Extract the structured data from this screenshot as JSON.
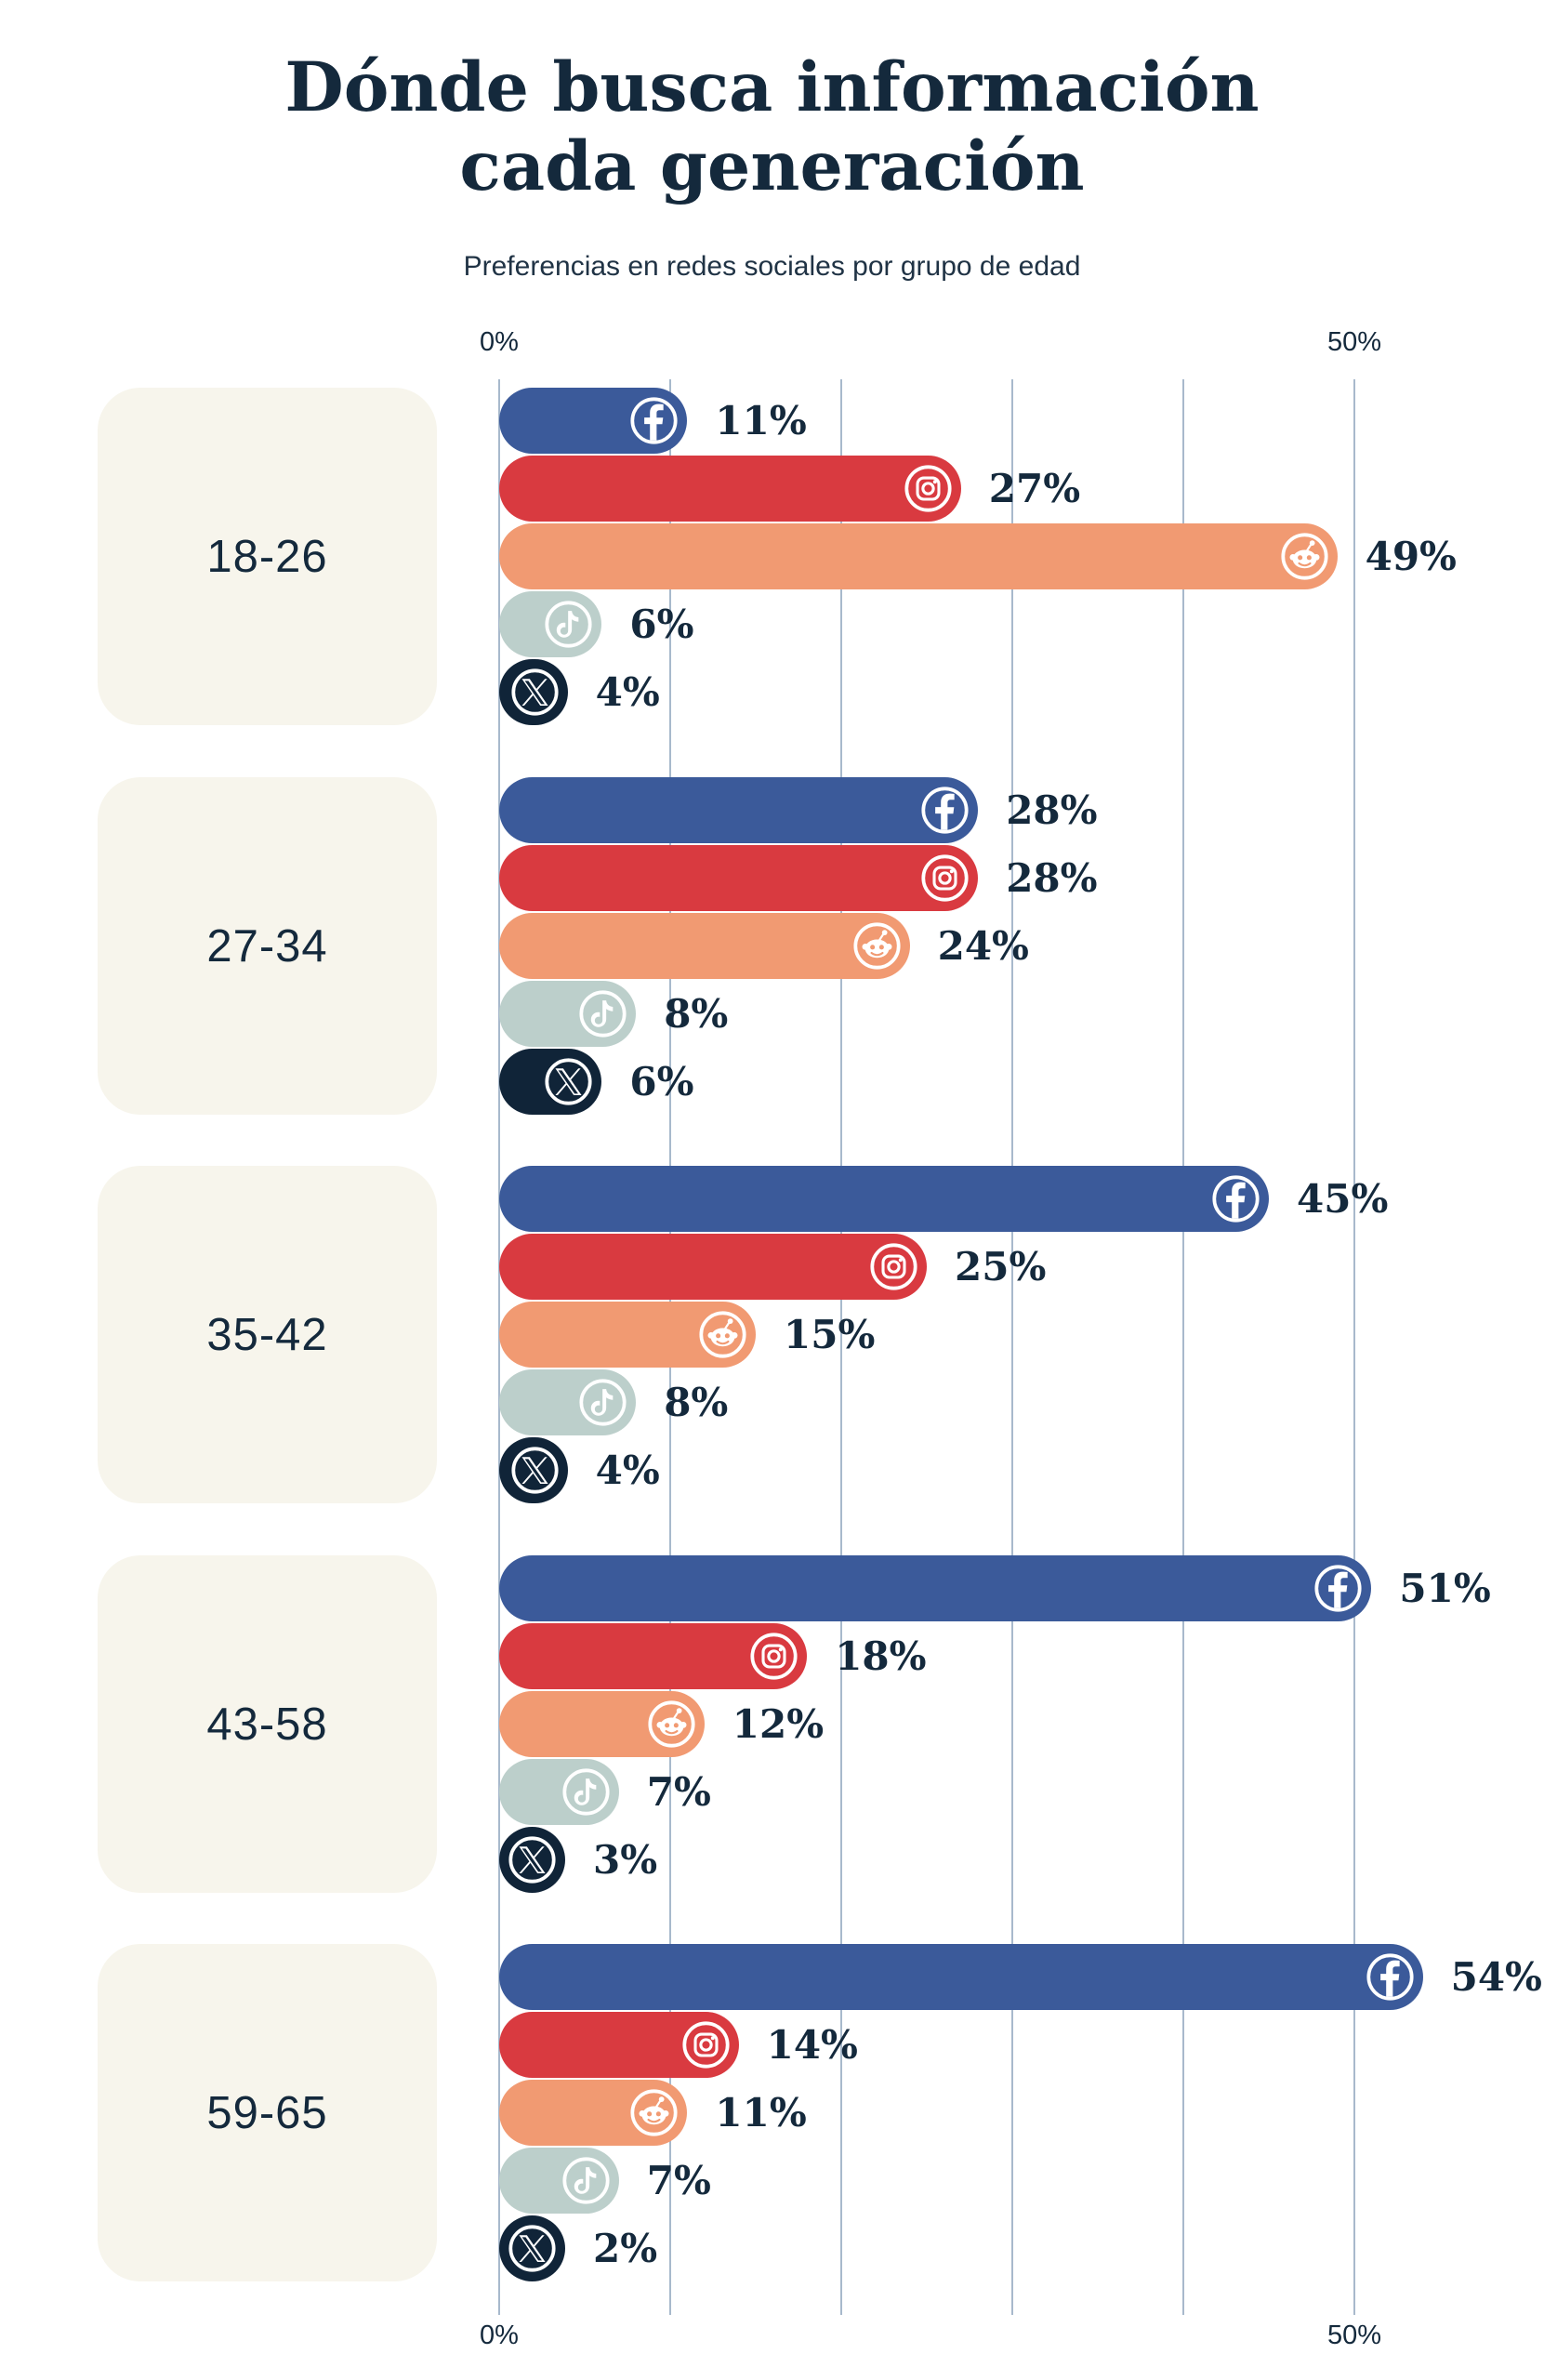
{
  "header": {
    "title": "Dónde busca información cada generación",
    "title_line1": "Dónde busca información",
    "title_line2": "cada generación",
    "subtitle": "Preferencias en redes sociales por grupo de edad"
  },
  "axis": {
    "top_left": "0%",
    "top_right": "50%",
    "bottom_left": "0%",
    "bottom_right": "50%"
  },
  "colors": {
    "background": "#ffffff",
    "text": "#14293c",
    "card": "#f7f5ec",
    "gridline": "#a8b9cc",
    "facebook": "#3b5a9a",
    "instagram": "#d93a40",
    "reddit": "#f19a72",
    "tiktok": "#bccfcb",
    "x": "#102438"
  },
  "platforms": [
    {
      "name": "Facebook",
      "icon": "facebook-icon",
      "color": "#3b5a9a"
    },
    {
      "name": "Instagram",
      "icon": "instagram-icon",
      "color": "#d93a40"
    },
    {
      "name": "Reddit",
      "icon": "reddit-icon",
      "color": "#f19a72"
    },
    {
      "name": "TikTok",
      "icon": "tiktok-icon",
      "color": "#bccfcb"
    },
    {
      "name": "X",
      "icon": "x-icon",
      "color": "#102438"
    }
  ],
  "chart_data": {
    "type": "bar",
    "orientation": "horizontal",
    "title": "Dónde busca información cada generación",
    "subtitle": "Preferencias en redes sociales por grupo de edad",
    "unit": "%",
    "xlim": [
      0,
      50
    ],
    "x_tick_labels": [
      "0%",
      "50%"
    ],
    "grid": true,
    "gridline_step_pct": 10,
    "legend": "icons-on-bars",
    "categories": [
      "18-26",
      "27-34",
      "35-42",
      "43-58",
      "59-65"
    ],
    "series": [
      {
        "name": "Facebook",
        "values": [
          11,
          28,
          45,
          51,
          54
        ]
      },
      {
        "name": "Instagram",
        "values": [
          27,
          28,
          25,
          18,
          14
        ]
      },
      {
        "name": "Reddit",
        "values": [
          49,
          24,
          15,
          12,
          11
        ]
      },
      {
        "name": "TikTok",
        "values": [
          6,
          8,
          8,
          7,
          7
        ]
      },
      {
        "name": "X",
        "values": [
          4,
          6,
          4,
          3,
          2
        ]
      }
    ]
  }
}
